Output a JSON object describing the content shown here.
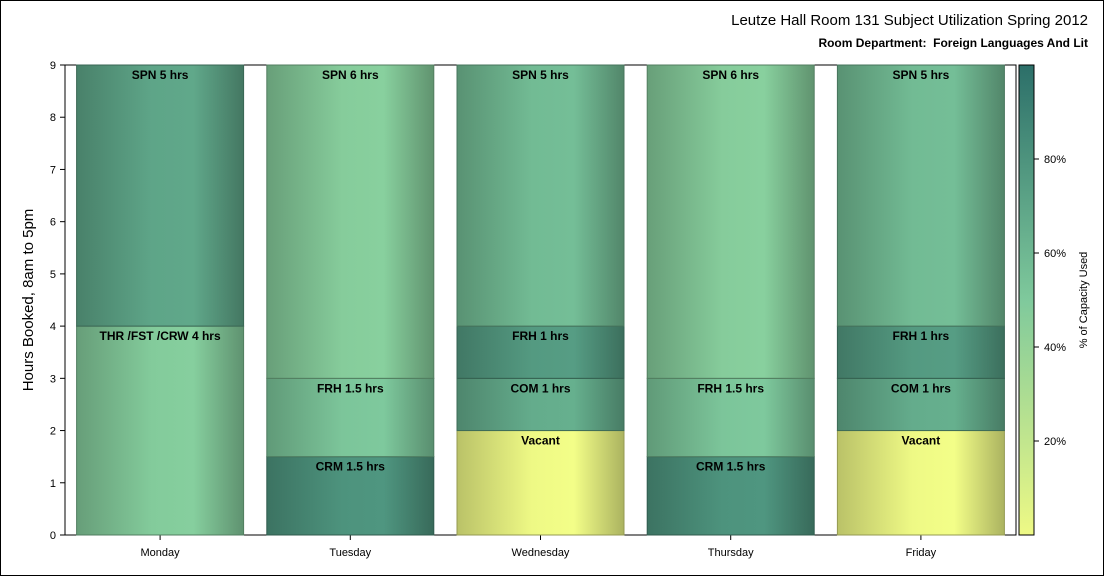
{
  "chart_data": {
    "type": "bar",
    "stacked": true,
    "title": "Leutze Hall Room 131 Subject Utilization Spring 2012",
    "subtitle": "Room Department:  Foreign Languages And Lit",
    "ylabel": "Hours Booked, 8am to 5pm",
    "xlabel": "",
    "ylim": [
      0,
      9
    ],
    "yticks": [
      "0",
      "1",
      "2",
      "3",
      "4",
      "5",
      "6",
      "7",
      "8",
      "9"
    ],
    "categories": [
      "Monday",
      "Tuesday",
      "Wednesday",
      "Thursday",
      "Friday"
    ],
    "bars": [
      {
        "day": "Monday",
        "segments": [
          {
            "label": "THR /FST /CRW 4 hrs",
            "hours": 4,
            "pct": 48
          },
          {
            "label": "SPN 5 hrs",
            "hours": 5,
            "pct": 70
          }
        ]
      },
      {
        "day": "Tuesday",
        "segments": [
          {
            "label": "CRM 1.5 hrs",
            "hours": 1.5,
            "pct": 80
          },
          {
            "label": "FRH 1.5 hrs",
            "hours": 1.5,
            "pct": 52
          },
          {
            "label": "SPN 6 hrs",
            "hours": 6,
            "pct": 47
          }
        ]
      },
      {
        "day": "Wednesday",
        "segments": [
          {
            "label": "Vacant",
            "hours": 2,
            "pct": 0
          },
          {
            "label": "COM 1 hrs",
            "hours": 1,
            "pct": 66
          },
          {
            "label": "FRH 1 hrs",
            "hours": 1,
            "pct": 76
          },
          {
            "label": "SPN 5 hrs",
            "hours": 5,
            "pct": 58
          }
        ]
      },
      {
        "day": "Thursday",
        "segments": [
          {
            "label": "CRM 1.5 hrs",
            "hours": 1.5,
            "pct": 80
          },
          {
            "label": "FRH 1.5 hrs",
            "hours": 1.5,
            "pct": 52
          },
          {
            "label": "SPN 6 hrs",
            "hours": 6,
            "pct": 47
          }
        ]
      },
      {
        "day": "Friday",
        "segments": [
          {
            "label": "Vacant",
            "hours": 2,
            "pct": 0
          },
          {
            "label": "COM 1 hrs",
            "hours": 1,
            "pct": 66
          },
          {
            "label": "FRH 1 hrs",
            "hours": 1,
            "pct": 76
          },
          {
            "label": "SPN 5 hrs",
            "hours": 5,
            "pct": 58
          }
        ]
      }
    ],
    "colorbar": {
      "label": "% of Capacity Used",
      "ticks": [
        {
          "label": "20%",
          "value": 20
        },
        {
          "label": "40%",
          "value": 40
        },
        {
          "label": "60%",
          "value": 60
        },
        {
          "label": "80%",
          "value": 80
        }
      ],
      "range": [
        0,
        100
      ],
      "colors": [
        "#eef985",
        "#7fc99c",
        "#2c6f69"
      ]
    },
    "grid": false,
    "legend": "right colorbar"
  }
}
